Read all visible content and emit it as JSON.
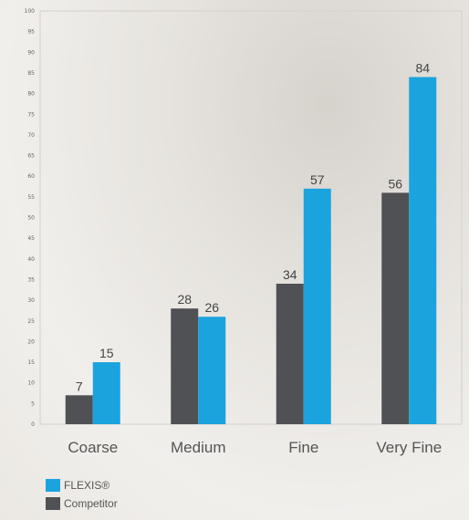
{
  "chart_data": {
    "type": "bar",
    "categories": [
      "Coarse",
      "Medium",
      "Fine",
      "Very Fine"
    ],
    "series": [
      {
        "name": "Competitor",
        "values": [
          7,
          28,
          34,
          56
        ],
        "color": "#505154"
      },
      {
        "name": "FLEXIS®",
        "values": [
          15,
          26,
          57,
          84
        ],
        "color": "#1ba3de"
      }
    ],
    "yticks": [
      0,
      5,
      10,
      15,
      20,
      25,
      30,
      35,
      40,
      45,
      50,
      55,
      60,
      65,
      70,
      75,
      80,
      85,
      90,
      95,
      100
    ],
    "ylim": [
      0,
      100
    ],
    "title": "",
    "xlabel": "",
    "ylabel": "",
    "legend_position": "bottom-left"
  },
  "legend": [
    {
      "label": "FLEXIS®",
      "color": "#1ba3de"
    },
    {
      "label": "Competitor",
      "color": "#505154"
    }
  ]
}
